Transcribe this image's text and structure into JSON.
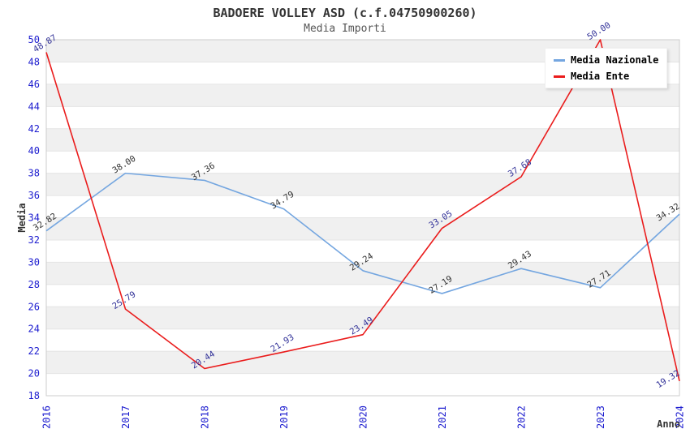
{
  "header": {
    "title": "BADOERE VOLLEY ASD (c.f.04750900260)",
    "subtitle": "Media Importi"
  },
  "chart_data": {
    "type": "line",
    "title": "BADOERE VOLLEY ASD (c.f.04750900260)",
    "subtitle": "Media Importi",
    "xlabel": "Anno",
    "ylabel": "Media",
    "categories": [
      "2016",
      "2017",
      "2018",
      "2019",
      "2020",
      "2021",
      "2022",
      "2023",
      "2024"
    ],
    "series": [
      {
        "name": "Media Nazionale",
        "color": "#74a6e0",
        "label_color": "#333333",
        "values": [
          32.82,
          38.0,
          37.36,
          34.79,
          29.24,
          27.19,
          29.43,
          27.71,
          34.32
        ]
      },
      {
        "name": "Media Ente",
        "color": "#ea1c1c",
        "label_color": "#333399",
        "values": [
          48.87,
          25.79,
          20.44,
          21.93,
          23.49,
          33.05,
          37.68,
          50.0,
          19.32
        ]
      }
    ],
    "ylim": [
      18,
      50
    ],
    "ytick_step": 2,
    "grid": "horizontal-bands",
    "legend_position": "top-right",
    "colors": {
      "tick_label": "#1c1ccf",
      "axis_title": "#333333",
      "band": "#f0f0f0",
      "gridline": "#e4e4e4",
      "plot_border": "#cccccc"
    }
  }
}
